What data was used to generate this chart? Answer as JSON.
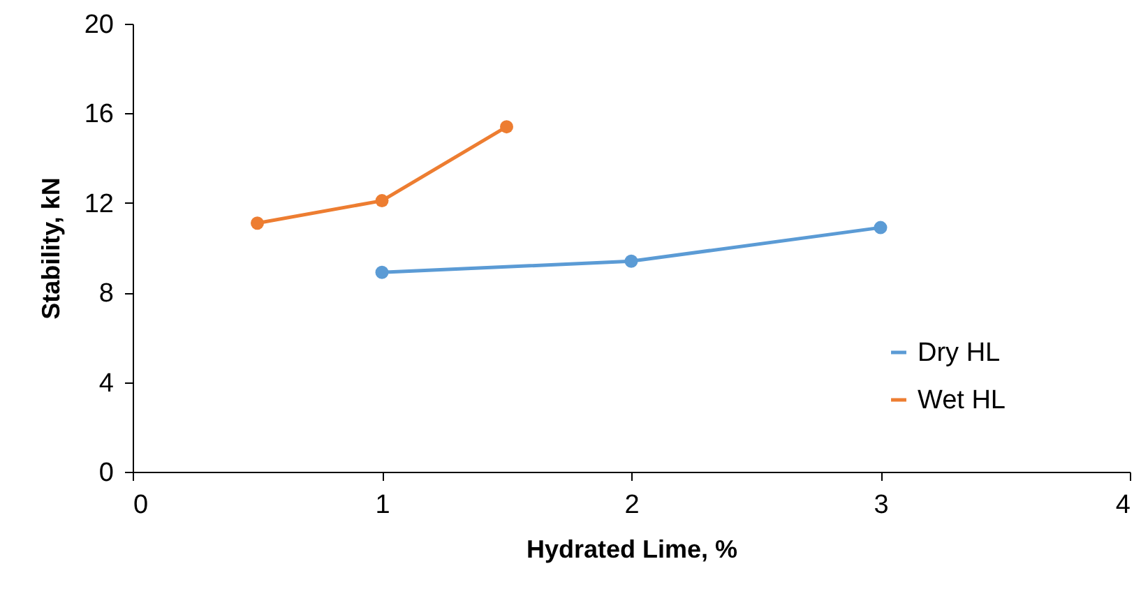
{
  "chart_data": {
    "type": "line",
    "xlabel": "Hydrated  Lime, %",
    "ylabel": "Stability, kN",
    "xlim": [
      0,
      4
    ],
    "xticks": [
      0,
      1,
      2,
      3,
      4
    ],
    "ylim": [
      0,
      20
    ],
    "yticks": [
      0,
      4,
      8,
      12,
      16,
      20
    ],
    "grid": false,
    "legend": "bottom right",
    "marker": "circle",
    "line_style": "solid",
    "series": [
      {
        "name": "Dry HL",
        "color": "#5b9bd5",
        "x": [
          1,
          2,
          3
        ],
        "values": [
          8.9,
          9.4,
          10.9
        ]
      },
      {
        "name": "Wet HL",
        "color": "#ed7d31",
        "x": [
          0.5,
          1,
          1.5
        ],
        "values": [
          11.1,
          12.1,
          15.4
        ]
      }
    ]
  }
}
